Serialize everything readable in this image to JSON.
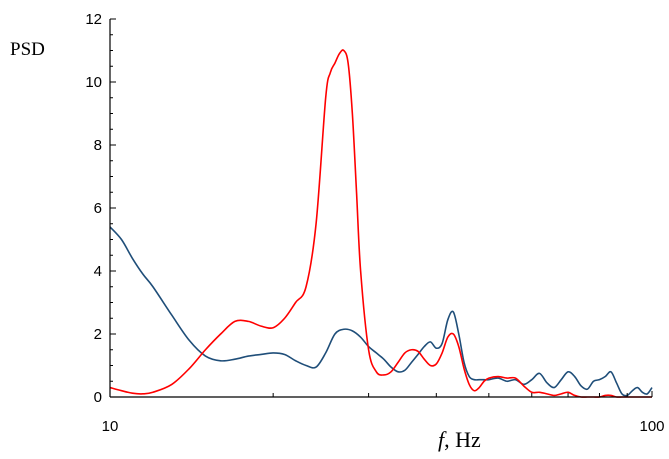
{
  "chart_data": {
    "type": "line",
    "xlabel_italic": "f",
    "xlabel_rest": ", Hz",
    "ylabel": "PSD",
    "xscale": "log",
    "xlim": [
      10,
      100
    ],
    "ylim": [
      0,
      12
    ],
    "x_tick_labels": [
      "10",
      "100"
    ],
    "y_tick_labels": [
      "0",
      "2",
      "4",
      "6",
      "8",
      "10",
      "12"
    ],
    "grid": false,
    "legend": "none",
    "series": [
      {
        "color": "#1f4e79",
        "x": [
          10,
          10.5,
          11,
          11.5,
          12,
          13,
          14,
          15,
          16,
          17,
          18,
          19,
          20,
          21,
          22,
          23,
          24,
          25,
          26,
          27,
          28,
          29,
          30,
          31,
          32,
          33,
          34,
          35,
          36,
          37,
          38,
          39,
          40,
          41,
          42,
          43,
          44,
          45,
          46,
          47,
          48,
          49,
          50,
          52,
          54,
          56,
          58,
          60,
          62,
          64,
          66,
          68,
          70,
          72,
          74,
          76,
          78,
          80,
          82,
          84,
          86,
          88,
          90,
          92,
          94,
          96,
          98,
          100
        ],
        "y": [
          5.4,
          5.0,
          4.4,
          3.9,
          3.5,
          2.6,
          1.8,
          1.3,
          1.15,
          1.2,
          1.3,
          1.35,
          1.4,
          1.35,
          1.15,
          1.0,
          0.95,
          1.4,
          2.0,
          2.15,
          2.1,
          1.9,
          1.6,
          1.4,
          1.2,
          0.95,
          0.8,
          0.85,
          1.1,
          1.35,
          1.6,
          1.75,
          1.55,
          1.7,
          2.45,
          2.7,
          2.0,
          1.1,
          0.65,
          0.55,
          0.55,
          0.55,
          0.55,
          0.6,
          0.5,
          0.55,
          0.4,
          0.55,
          0.75,
          0.45,
          0.3,
          0.55,
          0.8,
          0.65,
          0.35,
          0.25,
          0.5,
          0.55,
          0.65,
          0.8,
          0.45,
          0.1,
          0.05,
          0.2,
          0.3,
          0.15,
          0.1,
          0.3
        ]
      },
      {
        "color": "#ff0000",
        "x": [
          10,
          10.5,
          11,
          11.5,
          12,
          13,
          14,
          15,
          16,
          17,
          18,
          19,
          20,
          21,
          22,
          23,
          24,
          25,
          25.5,
          26,
          26.5,
          27,
          27.5,
          28,
          28.5,
          29,
          30,
          31,
          32,
          33,
          34,
          35,
          36,
          37,
          38,
          39,
          40,
          41,
          42,
          43,
          44,
          45,
          46,
          47,
          48,
          49,
          50,
          52,
          54,
          56,
          58,
          60,
          62,
          64,
          66,
          68,
          70,
          72,
          74,
          76,
          78,
          80,
          82,
          84,
          86,
          88,
          90,
          92,
          94,
          96,
          98,
          100
        ],
        "y": [
          0.3,
          0.2,
          0.12,
          0.1,
          0.15,
          0.4,
          0.9,
          1.5,
          2.0,
          2.4,
          2.4,
          2.25,
          2.2,
          2.5,
          3.0,
          3.5,
          5.5,
          9.5,
          10.3,
          10.6,
          10.9,
          11.0,
          10.6,
          9.0,
          6.5,
          4.0,
          1.5,
          0.8,
          0.7,
          0.8,
          1.1,
          1.4,
          1.5,
          1.45,
          1.2,
          1.0,
          1.05,
          1.4,
          1.9,
          2.0,
          1.6,
          0.9,
          0.4,
          0.2,
          0.3,
          0.5,
          0.6,
          0.65,
          0.6,
          0.6,
          0.35,
          0.15,
          0.15,
          0.1,
          0.05,
          0.1,
          0.15,
          0.05,
          0.0,
          0.0,
          0.0,
          0.0,
          0.05,
          0.05,
          0.0,
          0.0,
          0.0,
          0.0,
          0.0,
          0.0,
          0.0,
          0.0
        ]
      }
    ]
  }
}
